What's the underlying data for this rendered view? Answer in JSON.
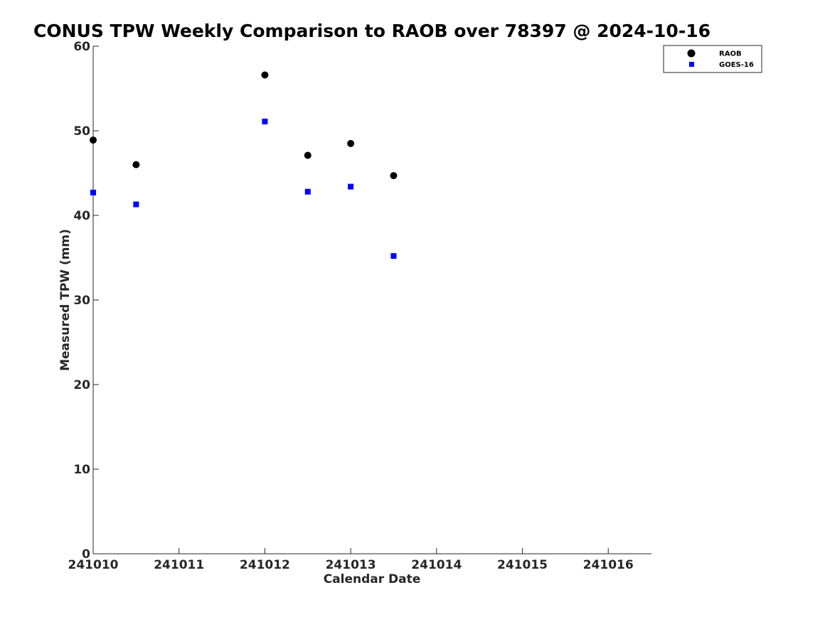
{
  "chart_data": {
    "type": "scatter",
    "title": "CONUS TPW Weekly Comparison to RAOB over 78397 @ 2024-10-16",
    "xlabel": "Calendar Date",
    "ylabel": "Measured TPW (mm)",
    "x_tick_labels": [
      "241010",
      "241011",
      "241012",
      "241013",
      "241014",
      "241015",
      "241016"
    ],
    "y_tick_labels": [
      "0",
      "10",
      "20",
      "30",
      "40",
      "50",
      "60"
    ],
    "ylim": [
      0,
      60
    ],
    "grid": false,
    "legend_position": "top-right",
    "series": [
      {
        "name": "RAOB",
        "marker": "circle",
        "color": "#000000",
        "points": [
          {
            "x": "2024-10-10 00Z",
            "y": 48.9
          },
          {
            "x": "2024-10-10 12Z",
            "y": 46.0
          },
          {
            "x": "2024-10-12 00Z",
            "y": 56.6
          },
          {
            "x": "2024-10-12 12Z",
            "y": 47.1
          },
          {
            "x": "2024-10-13 00Z",
            "y": 48.5
          },
          {
            "x": "2024-10-13 12Z",
            "y": 44.7
          }
        ]
      },
      {
        "name": "GOES-16",
        "marker": "square",
        "color": "#0000ff",
        "points": [
          {
            "x": "2024-10-10 00Z",
            "y": 42.7
          },
          {
            "x": "2024-10-10 12Z",
            "y": 41.3
          },
          {
            "x": "2024-10-12 00Z",
            "y": 51.1
          },
          {
            "x": "2024-10-12 12Z",
            "y": 42.8
          },
          {
            "x": "2024-10-13 00Z",
            "y": 43.4
          },
          {
            "x": "2024-10-13 12Z",
            "y": 35.2
          }
        ]
      }
    ]
  }
}
